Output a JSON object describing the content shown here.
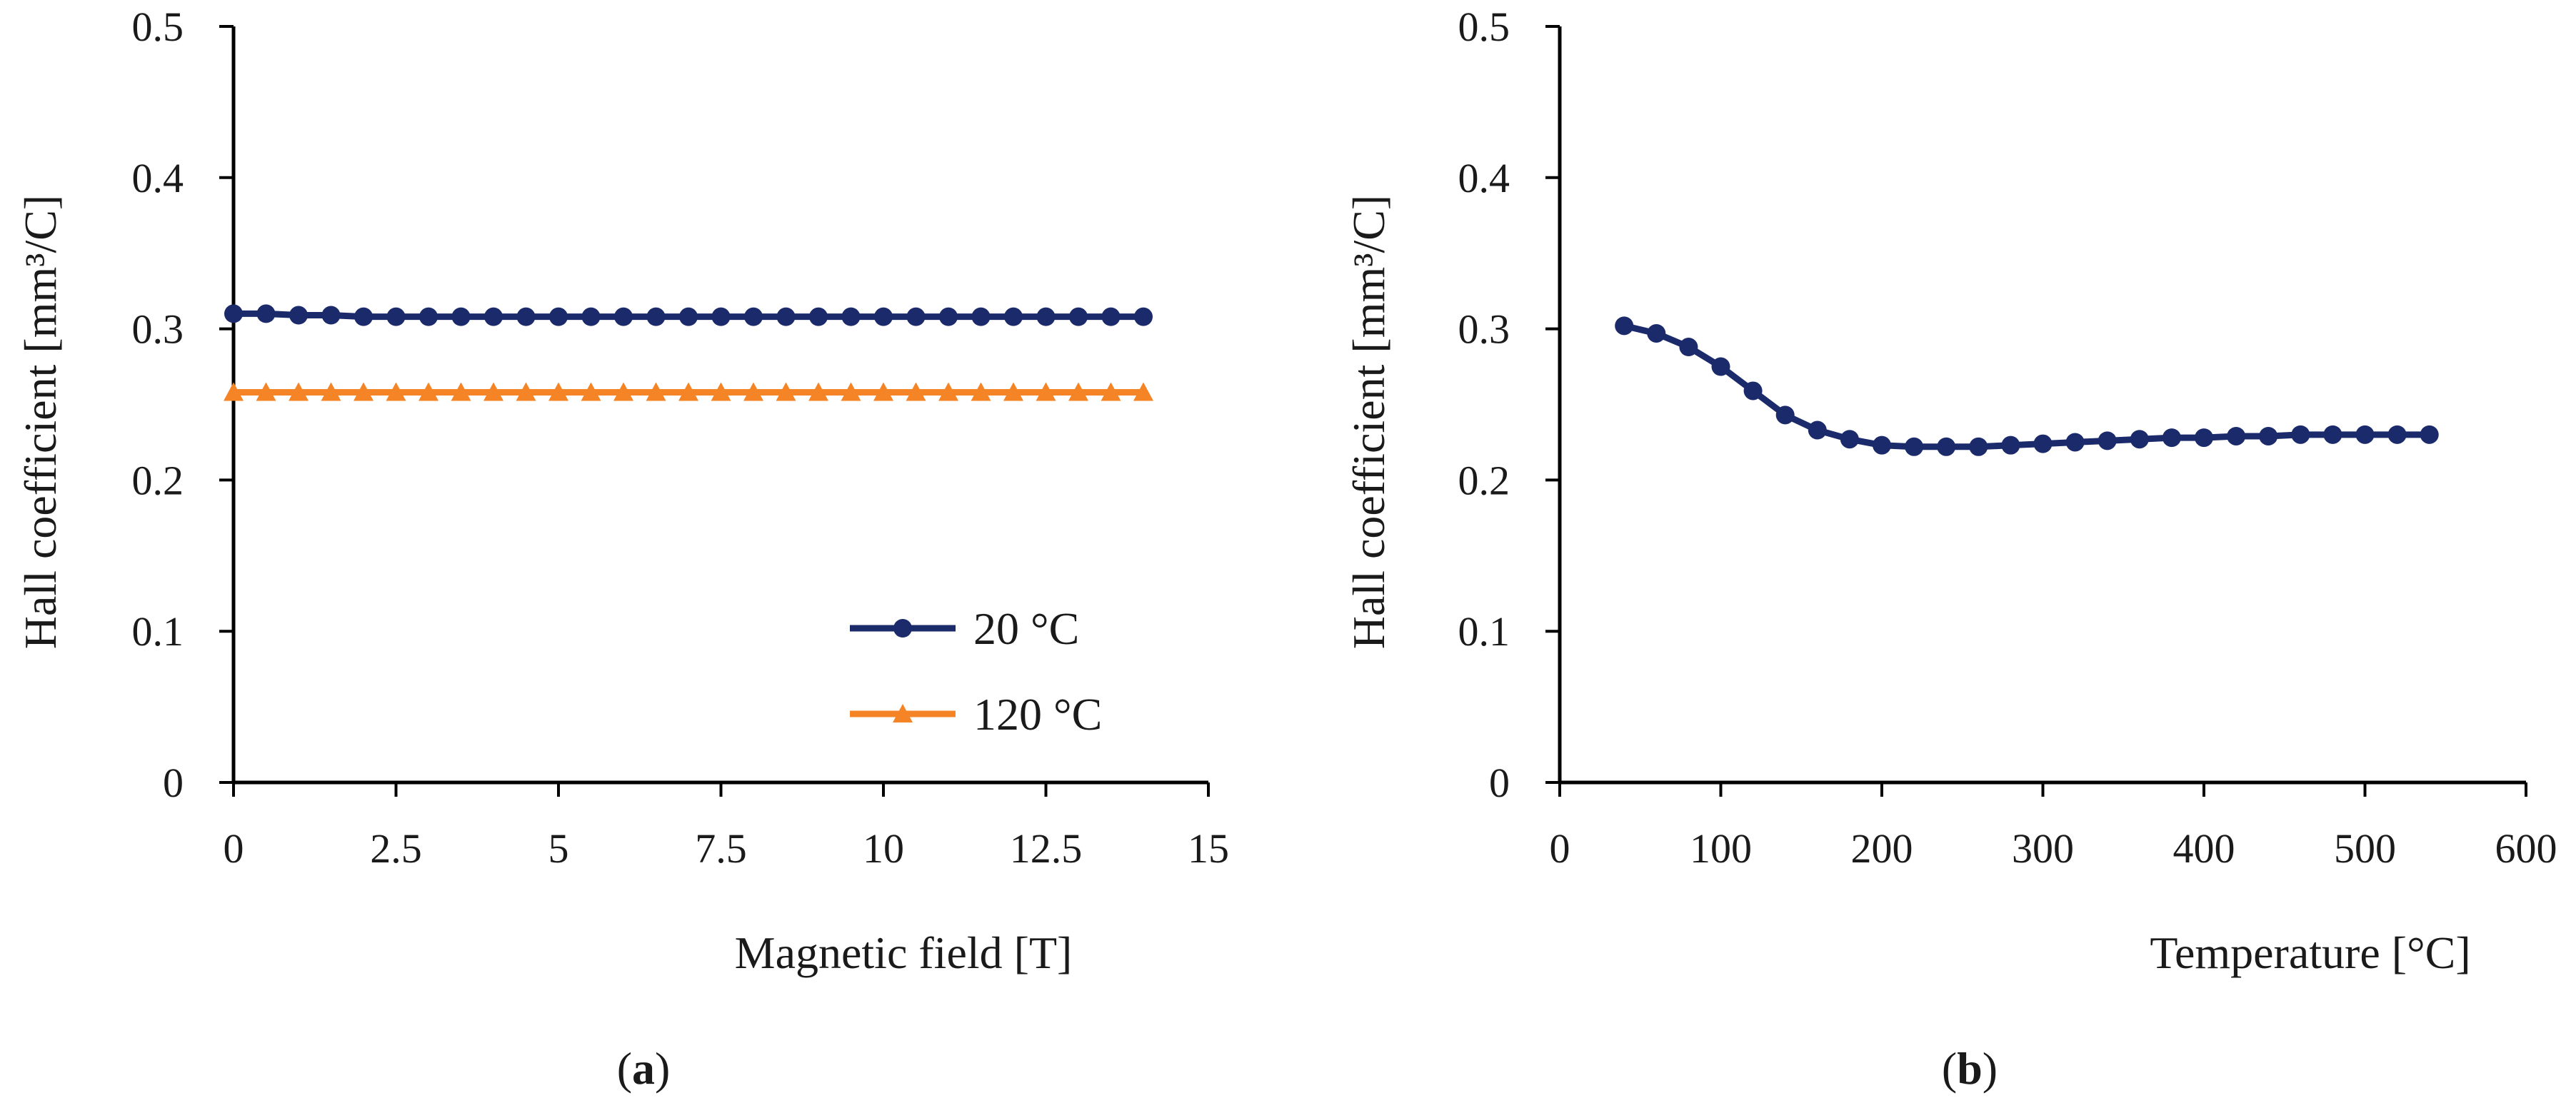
{
  "chart_data": [
    {
      "id": "a",
      "type": "line",
      "caption_open": "(",
      "caption_label": "a",
      "caption_close": ")",
      "xlabel": "Magnetic field [T]",
      "ylabel": "Hall coefficient [mm³/C]",
      "xlim": [
        0,
        15
      ],
      "ylim": [
        0,
        0.5
      ],
      "xticks": [
        "0",
        "2.5",
        "5",
        "7.5",
        "10",
        "12.5",
        "15"
      ],
      "yticks": [
        "0",
        "0.1",
        "0.2",
        "0.3",
        "0.4",
        "0.5"
      ],
      "legend_position": "bottom-right",
      "series": [
        {
          "name": "20 °C",
          "color": "#1b2a6b",
          "marker": "circle",
          "x": [
            0,
            0.5,
            1,
            1.5,
            2,
            2.5,
            3,
            3.5,
            4,
            4.5,
            5,
            5.5,
            6,
            6.5,
            7,
            7.5,
            8,
            8.5,
            9,
            9.5,
            10,
            10.5,
            11,
            11.5,
            12,
            12.5,
            13,
            13.5,
            14
          ],
          "values": [
            0.31,
            0.31,
            0.309,
            0.309,
            0.308,
            0.308,
            0.308,
            0.308,
            0.308,
            0.308,
            0.308,
            0.308,
            0.308,
            0.308,
            0.308,
            0.308,
            0.308,
            0.308,
            0.308,
            0.308,
            0.308,
            0.308,
            0.308,
            0.308,
            0.308,
            0.308,
            0.308,
            0.308,
            0.308
          ]
        },
        {
          "name": "120 °C",
          "color": "#f58426",
          "marker": "triangle",
          "x": [
            0,
            0.5,
            1,
            1.5,
            2,
            2.5,
            3,
            3.5,
            4,
            4.5,
            5,
            5.5,
            6,
            6.5,
            7,
            7.5,
            8,
            8.5,
            9,
            9.5,
            10,
            10.5,
            11,
            11.5,
            12,
            12.5,
            13,
            13.5,
            14
          ],
          "values": [
            0.258,
            0.258,
            0.258,
            0.258,
            0.258,
            0.258,
            0.258,
            0.258,
            0.258,
            0.258,
            0.258,
            0.258,
            0.258,
            0.258,
            0.258,
            0.258,
            0.258,
            0.258,
            0.258,
            0.258,
            0.258,
            0.258,
            0.258,
            0.258,
            0.258,
            0.258,
            0.258,
            0.258,
            0.258
          ]
        }
      ]
    },
    {
      "id": "b",
      "type": "line",
      "caption_open": "(",
      "caption_label": "b",
      "caption_close": ")",
      "xlabel": "Temperature [°C]",
      "ylabel": "Hall coefficient [mm³/C]",
      "xlim": [
        0,
        600
      ],
      "ylim": [
        0,
        0.5
      ],
      "xticks": [
        "0",
        "100",
        "200",
        "300",
        "400",
        "500",
        "600"
      ],
      "yticks": [
        "0",
        "0.1",
        "0.2",
        "0.3",
        "0.4",
        "0.5"
      ],
      "series": [
        {
          "name": "Hall coefficient",
          "color": "#1b2a6b",
          "marker": "circle",
          "x": [
            40,
            60,
            80,
            100,
            120,
            140,
            160,
            180,
            200,
            220,
            240,
            260,
            280,
            300,
            320,
            340,
            360,
            380,
            400,
            420,
            440,
            460,
            480,
            500,
            520,
            540
          ],
          "values": [
            0.302,
            0.297,
            0.288,
            0.275,
            0.259,
            0.243,
            0.233,
            0.227,
            0.223,
            0.222,
            0.222,
            0.222,
            0.223,
            0.224,
            0.225,
            0.226,
            0.227,
            0.228,
            0.228,
            0.229,
            0.229,
            0.23,
            0.23,
            0.23,
            0.23,
            0.23
          ]
        }
      ]
    }
  ]
}
